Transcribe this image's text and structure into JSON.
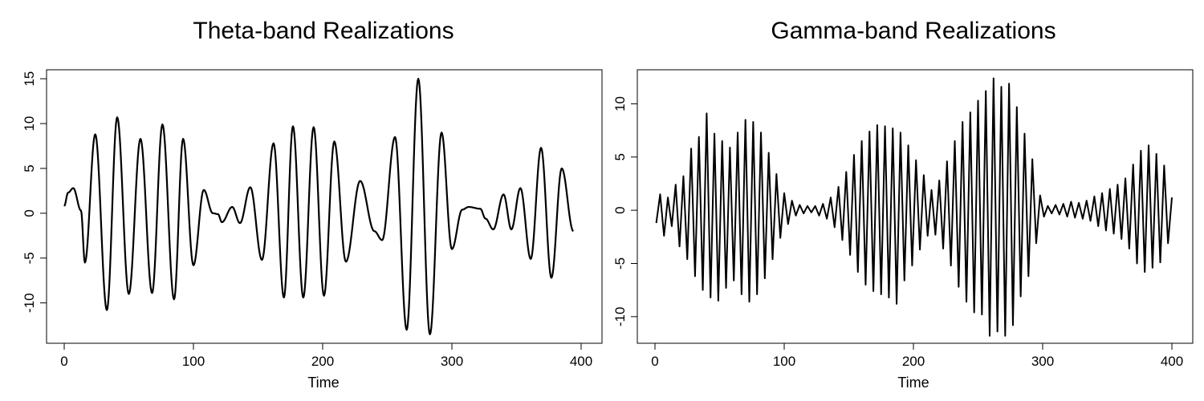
{
  "chart_data": [
    {
      "type": "line",
      "title": "Theta-band Realizations",
      "xlabel": "Time",
      "ylabel": "",
      "xlim": [
        0,
        400
      ],
      "ylim": [
        -14.5,
        16
      ],
      "xticks": [
        0,
        100,
        200,
        300,
        400
      ],
      "yticks": [
        -10,
        -5,
        0,
        5,
        10,
        15
      ],
      "grid": false,
      "legend": "none",
      "color": "#000000",
      "series": [
        {
          "keypoints": [
            [
              0,
              0.8
            ],
            [
              3,
              2.3
            ],
            [
              7,
              2.8
            ],
            [
              13,
              0.3
            ],
            [
              16,
              -5.5
            ],
            [
              24,
              8.8
            ],
            [
              33,
              -10.8
            ],
            [
              41,
              10.7
            ],
            [
              50,
              -9.0
            ],
            [
              59,
              8.3
            ],
            [
              68,
              -8.9
            ],
            [
              76,
              9.9
            ],
            [
              85,
              -9.6
            ],
            [
              92,
              8.3
            ],
            [
              100,
              -5.8
            ],
            [
              108,
              2.6
            ],
            [
              115,
              0.0
            ],
            [
              119,
              -0.1
            ],
            [
              122,
              -1.0
            ],
            [
              130,
              0.7
            ],
            [
              136,
              -1.1
            ],
            [
              144,
              2.9
            ],
            [
              153,
              -5.2
            ],
            [
              162,
              7.8
            ],
            [
              170,
              -9.4
            ],
            [
              177,
              9.7
            ],
            [
              185,
              -9.4
            ],
            [
              193,
              9.6
            ],
            [
              201,
              -9.2
            ],
            [
              209,
              8.0
            ],
            [
              218,
              -5.4
            ],
            [
              229,
              3.6
            ],
            [
              240,
              -2.0
            ],
            [
              246,
              -3.0
            ],
            [
              256,
              8.5
            ],
            [
              265,
              -13.0
            ],
            [
              274,
              15.0
            ],
            [
              283,
              -13.5
            ],
            [
              292,
              9.0
            ],
            [
              300,
              -4.0
            ],
            [
              308,
              0.4
            ],
            [
              313,
              0.7
            ],
            [
              322,
              0.5
            ],
            [
              326,
              -0.6
            ],
            [
              332,
              -1.8
            ],
            [
              340,
              2.1
            ],
            [
              346,
              -1.8
            ],
            [
              353,
              2.8
            ],
            [
              361,
              -5.1
            ],
            [
              369,
              7.3
            ],
            [
              377,
              -7.2
            ],
            [
              385,
              5.0
            ],
            [
              394,
              -2.0
            ]
          ]
        }
      ]
    },
    {
      "type": "line",
      "title": "Gamma-band Realizations",
      "xlabel": "Time",
      "ylabel": "",
      "xlim": [
        0,
        400
      ],
      "ylim": [
        -12.5,
        13.2
      ],
      "xticks": [
        0,
        100,
        200,
        300,
        400
      ],
      "yticks": [
        -10,
        -5,
        0,
        5,
        10
      ],
      "grid": false,
      "legend": "none",
      "color": "#000000",
      "series": [
        {
          "x": [
            1,
            4,
            7,
            10,
            13,
            16,
            19,
            22,
            25,
            28,
            31,
            34,
            37,
            40,
            43,
            46,
            49,
            52,
            55,
            58,
            61,
            64,
            67,
            70,
            73,
            76,
            79,
            82,
            85,
            88,
            91,
            94,
            97,
            100,
            103,
            106,
            109,
            112,
            115,
            118,
            121,
            124,
            127,
            130,
            133,
            136,
            139,
            142,
            145,
            148,
            151,
            154,
            157,
            160,
            163,
            166,
            169,
            172,
            175,
            178,
            181,
            184,
            187,
            190,
            193,
            196,
            199,
            202,
            205,
            208,
            211,
            214,
            217,
            220,
            223,
            226,
            229,
            232,
            235,
            238,
            241,
            244,
            247,
            250,
            253,
            256,
            259,
            262,
            265,
            268,
            271,
            274,
            277,
            280,
            283,
            286,
            289,
            292,
            295,
            298,
            301,
            304,
            307,
            310,
            313,
            316,
            319,
            322,
            325,
            328,
            331,
            334,
            337,
            340,
            343,
            346,
            349,
            352,
            355,
            358,
            361,
            364,
            367,
            370,
            373,
            376,
            379,
            382,
            385,
            388,
            391,
            394,
            397,
            400
          ],
          "y": [
            -1.2,
            1.5,
            -2.4,
            1.2,
            -1.5,
            2.4,
            -3.4,
            3.2,
            -4.6,
            5.8,
            -6.2,
            6.9,
            -7.5,
            9.1,
            -8.2,
            7.2,
            -8.5,
            6.5,
            -7.3,
            5.9,
            -6.6,
            7.3,
            -7.9,
            8.5,
            -8.6,
            8.3,
            -7.9,
            7.3,
            -6.4,
            5.4,
            -4.6,
            3.4,
            -2.6,
            1.6,
            -1.3,
            0.9,
            -0.5,
            0.5,
            -0.3,
            0.4,
            -0.2,
            0.4,
            -0.5,
            0.6,
            -0.8,
            1.2,
            -1.6,
            2.2,
            -2.8,
            3.6,
            -4.2,
            5.2,
            -5.8,
            6.5,
            -7.0,
            7.4,
            -7.6,
            8.0,
            -7.9,
            7.9,
            -8.2,
            7.7,
            -8.8,
            7.3,
            -6.6,
            6.1,
            -5.2,
            4.7,
            -3.7,
            3.3,
            -2.4,
            1.9,
            -2.3,
            2.8,
            -3.6,
            4.6,
            -5.2,
            6.5,
            -7.2,
            8.3,
            -8.6,
            9.2,
            -9.6,
            10.3,
            -9.8,
            11.2,
            -11.8,
            12.4,
            -11.4,
            11.6,
            -11.8,
            11.9,
            -10.8,
            9.7,
            -8.1,
            7.2,
            -6.2,
            4.8,
            -3.1,
            1.4,
            -0.6,
            0.4,
            -0.3,
            0.5,
            -0.4,
            0.6,
            -0.6,
            0.8,
            -0.7,
            0.7,
            -0.8,
            0.9,
            -1.0,
            1.3,
            -1.5,
            1.6,
            -1.9,
            2.0,
            -2.2,
            2.4,
            -2.7,
            3.0,
            -3.6,
            4.3,
            -5.0,
            5.6,
            -5.8,
            6.1,
            -5.4,
            5.3,
            -4.9,
            4.2,
            -3.1,
            1.2
          ]
        }
      ]
    }
  ]
}
